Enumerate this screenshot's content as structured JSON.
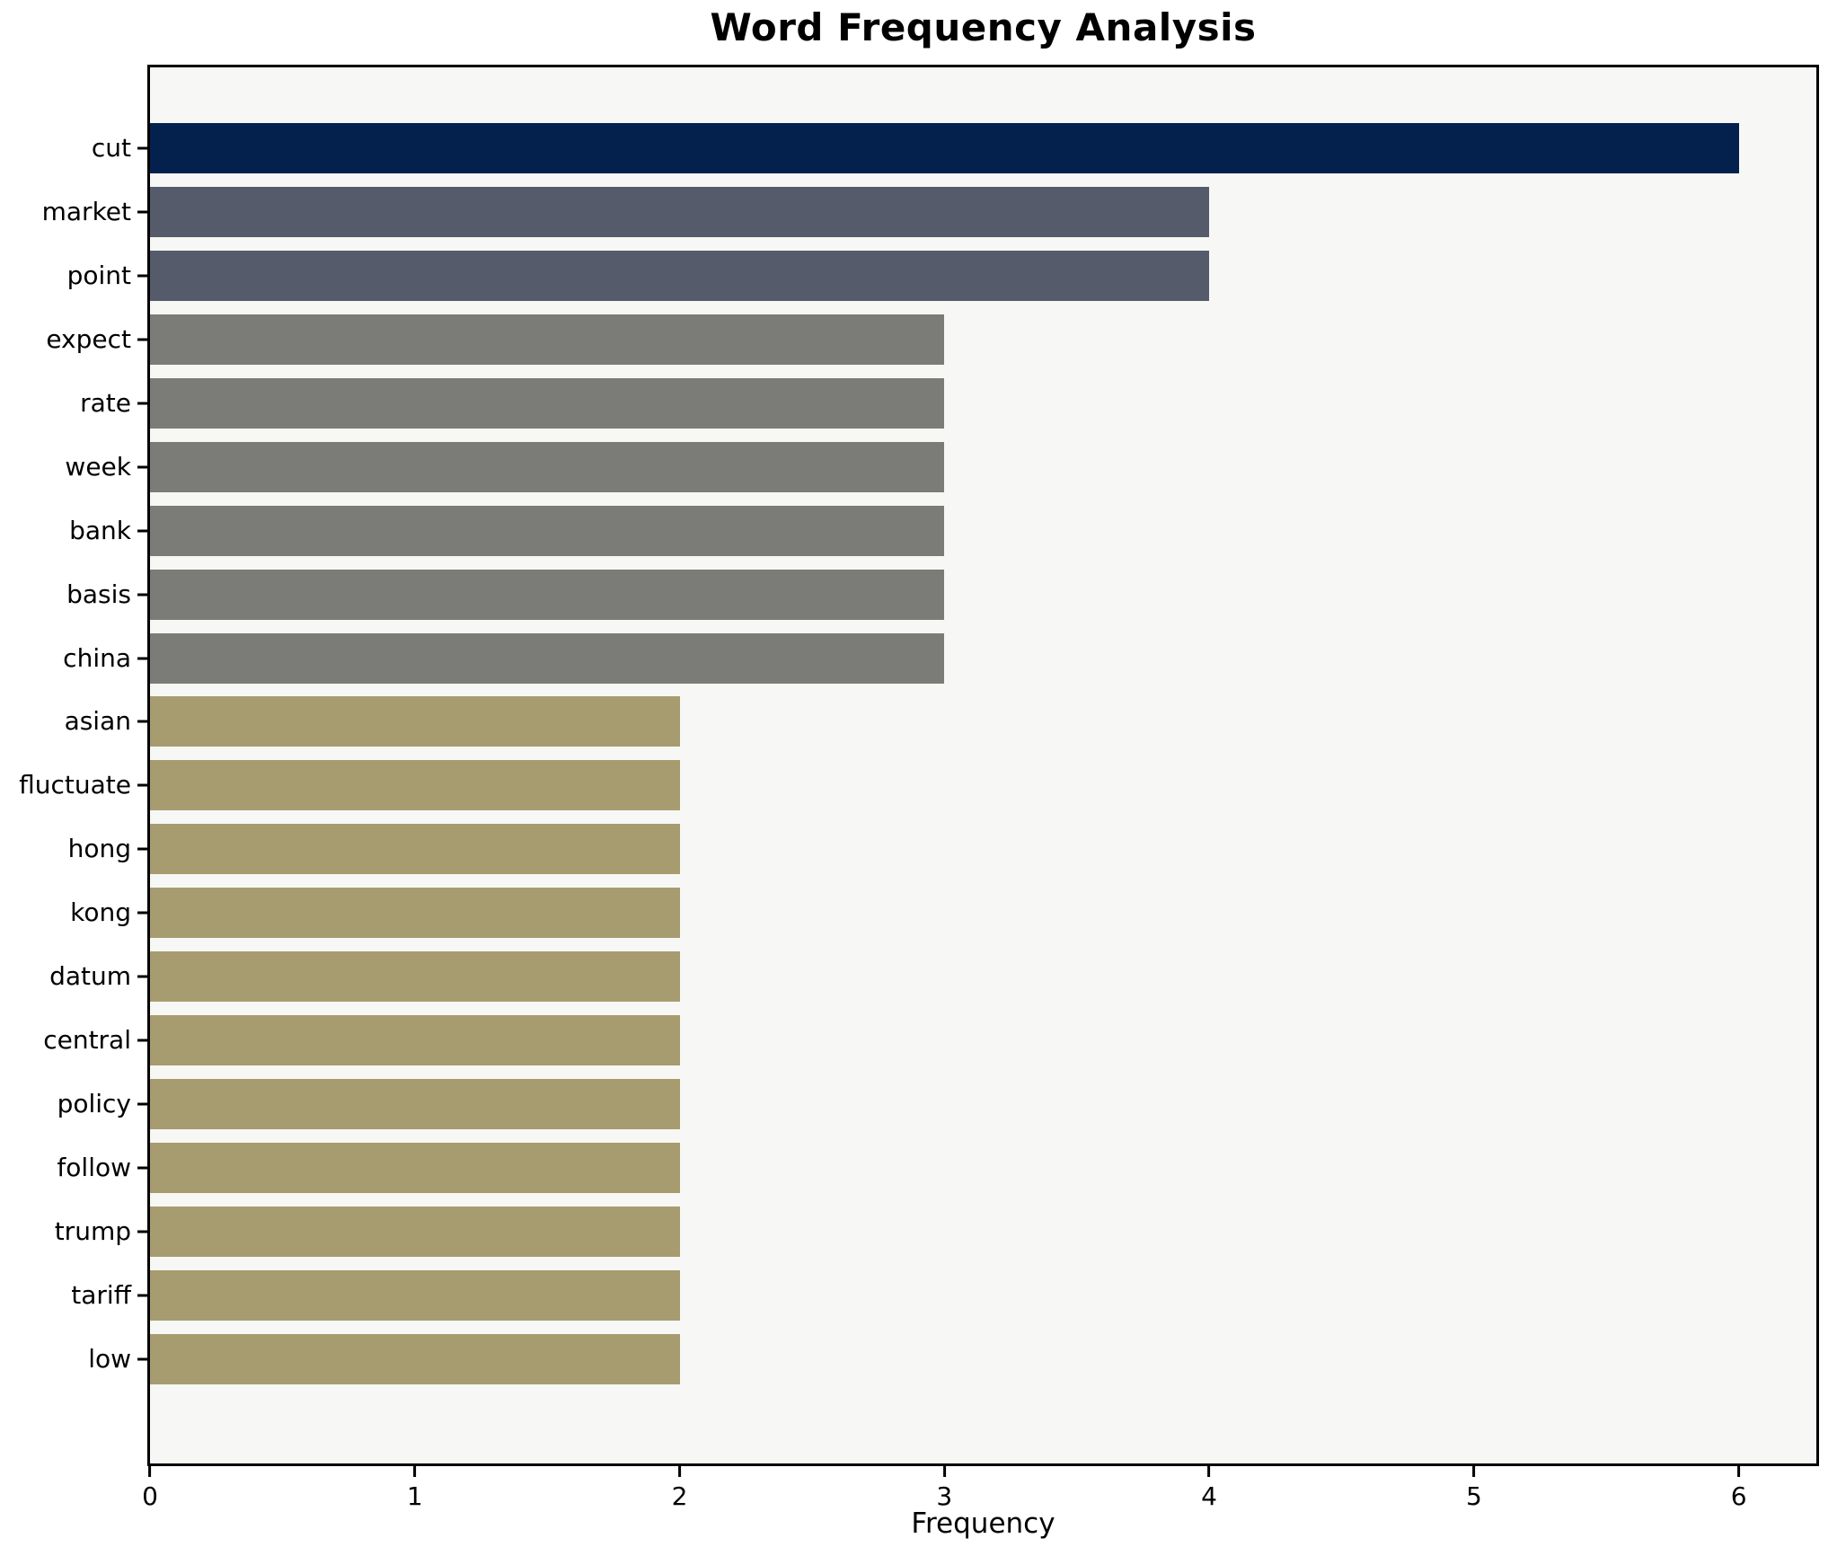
{
  "chart_data": {
    "type": "bar",
    "orientation": "horizontal",
    "title": "Word Frequency Analysis",
    "xlabel": "Frequency",
    "ylabel": "",
    "categories": [
      "cut",
      "market",
      "point",
      "expect",
      "rate",
      "week",
      "bank",
      "basis",
      "china",
      "asian",
      "fluctuate",
      "hong",
      "kong",
      "datum",
      "central",
      "policy",
      "follow",
      "trump",
      "tariff",
      "low"
    ],
    "values": [
      6,
      4,
      4,
      3,
      3,
      3,
      3,
      3,
      3,
      2,
      2,
      2,
      2,
      2,
      2,
      2,
      2,
      2,
      2,
      2
    ],
    "bar_colors": [
      "#04214d",
      "#565b6b",
      "#565b6b",
      "#7b7b77",
      "#7b7b77",
      "#7b7b77",
      "#7b7b77",
      "#7b7b77",
      "#7b7b77",
      "#a69c6f",
      "#a69c6f",
      "#a69c6f",
      "#a69c6f",
      "#a69c6f",
      "#a69c6f",
      "#a69c6f",
      "#a69c6f",
      "#a69c6f",
      "#a69c6f",
      "#a69c6f"
    ],
    "xticks": [
      0,
      1,
      2,
      3,
      4,
      5,
      6
    ],
    "xlim": [
      0,
      6.293
    ],
    "grid": false,
    "legend": false,
    "plot_background": "#f7f7f5",
    "figure_background": "#ffffff",
    "spine_color": "#000000"
  }
}
